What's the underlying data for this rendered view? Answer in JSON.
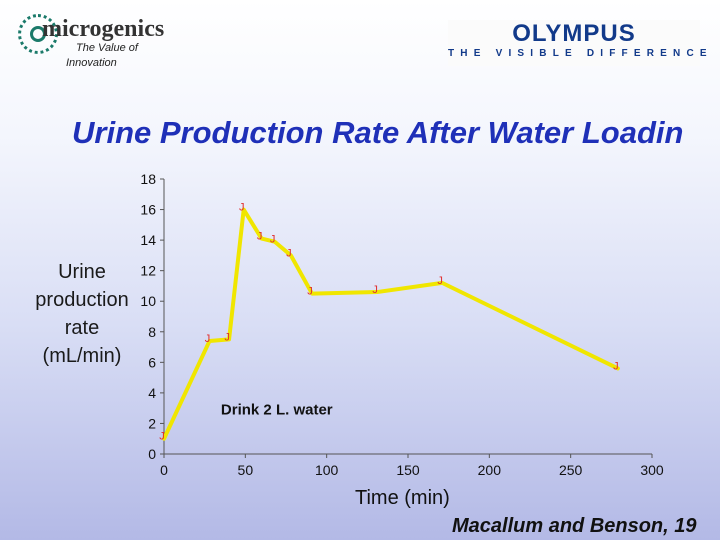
{
  "logos": {
    "left_brand": "microgenics",
    "left_tagline_1": "The Value of",
    "left_tagline_2": "Innovation",
    "right_brand": "OLYMPUS",
    "right_slogan": "THE VISIBLE DIFFERENCE"
  },
  "source": "Macallum and Benson, 19",
  "chart_data": {
    "type": "line",
    "title": "Urine Production Rate After Water Loadin",
    "ylabel_lines": [
      "Urine",
      "production",
      "rate",
      "(mL/min)"
    ],
    "xlabel": "Time (min)",
    "xlim": [
      0,
      300
    ],
    "ylim": [
      0,
      18
    ],
    "xticks": [
      0,
      50,
      100,
      150,
      200,
      250,
      300
    ],
    "yticks": [
      0,
      2,
      4,
      6,
      8,
      10,
      12,
      14,
      16,
      18
    ],
    "marker_glyph": "J",
    "annotation": "Drink 2 L. water",
    "color": "#f0e600",
    "marker_color": "#e03030",
    "series": [
      {
        "x": [
          0,
          28,
          40,
          49,
          60,
          68,
          78,
          91,
          131,
          171,
          279
        ],
        "y": [
          1.0,
          7.4,
          7.5,
          16.0,
          14.1,
          13.9,
          13.0,
          10.5,
          10.6,
          11.2,
          5.6
        ]
      }
    ]
  }
}
